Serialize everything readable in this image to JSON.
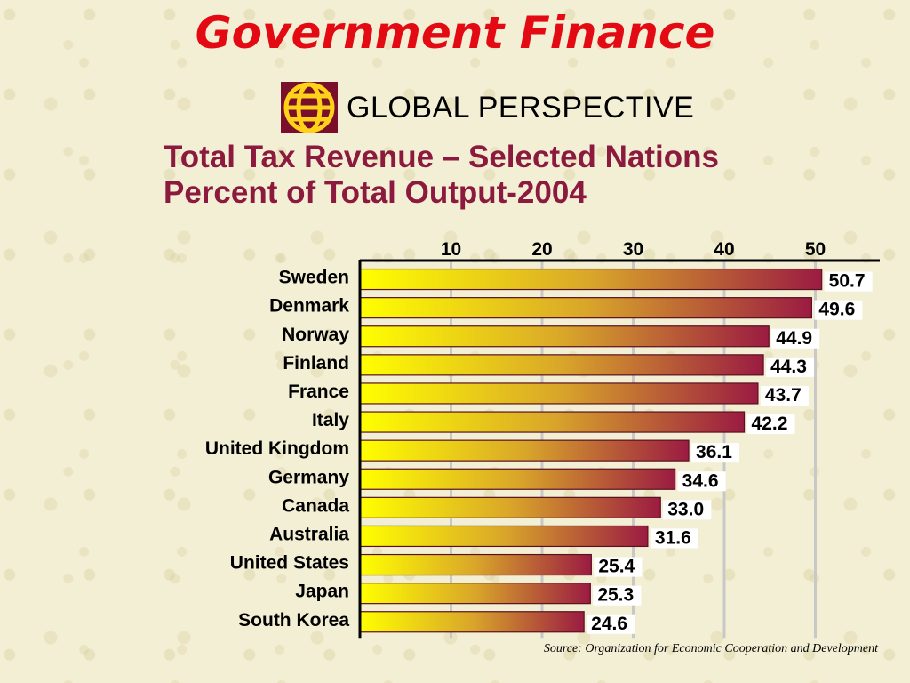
{
  "page": {
    "title": "Government Finance",
    "section": "GLOBAL PERSPECTIVE",
    "source": "Source: Organization for Economic Cooperation and Development"
  },
  "chart_data": {
    "type": "bar",
    "orientation": "horizontal",
    "title": "Total Tax Revenue – Selected Nations",
    "subtitle": "Percent of Total Output-2004",
    "xlabel": "",
    "ylabel": "",
    "xticks": [
      10,
      20,
      30,
      40,
      50
    ],
    "grid": true,
    "categories": [
      "Sweden",
      "Denmark",
      "Norway",
      "Finland",
      "France",
      "Italy",
      "United Kingdom",
      "Germany",
      "Canada",
      "Australia",
      "United States",
      "Japan",
      "South Korea"
    ],
    "values": [
      50.7,
      49.6,
      44.9,
      44.3,
      43.7,
      42.2,
      36.1,
      34.6,
      33.0,
      31.6,
      25.4,
      25.3,
      24.6
    ],
    "value_labels": [
      "50.7",
      "49.6",
      "44.9",
      "44.3",
      "43.7",
      "42.2",
      "36.1",
      "34.6",
      "33.0",
      "31.6",
      "25.4",
      "25.3",
      "24.6"
    ],
    "colors": {
      "bar_start": "#ffff00",
      "bar_mid": "#d9a62a",
      "bar_end": "#9b1b42",
      "bar_stroke": "#5a1020",
      "title": "#8b1a3e",
      "heading": "#e30a14"
    }
  }
}
